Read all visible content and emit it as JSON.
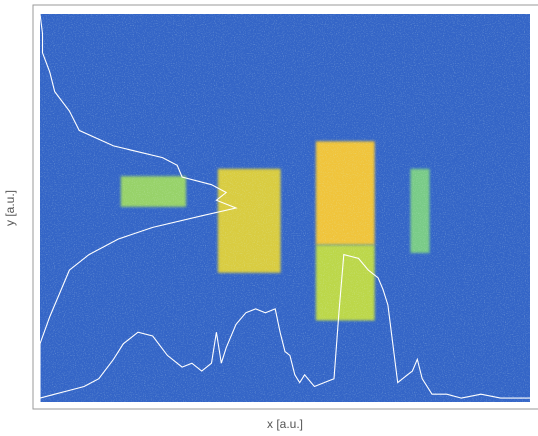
{
  "chart_data": {
    "type": "heatmap",
    "xlabel": "x [a.u.]",
    "ylabel": "y [a.u.]",
    "colormap": [
      "#2a3fb0",
      "#3a7fd6",
      "#3bbcc4",
      "#b6d94a",
      "#f0c43a",
      "#e23b2e"
    ],
    "frame_color": "#9a9a9a",
    "profile_color": "#ffffff",
    "regions": [
      {
        "name": "left-block",
        "x_range": [
          0.165,
          0.298
        ],
        "y_range": [
          0.418,
          0.497
        ],
        "intensity": 0.55
      },
      {
        "name": "center-left-block",
        "x_range": [
          0.363,
          0.491
        ],
        "y_range": [
          0.399,
          0.667
        ],
        "intensity": 0.72
      },
      {
        "name": "center-right-block",
        "x_range": [
          0.563,
          0.683
        ],
        "y_range": [
          0.328,
          0.595
        ],
        "intensity": 0.8
      },
      {
        "name": "center-right-block-lower",
        "x_range": [
          0.563,
          0.683
        ],
        "y_range": [
          0.595,
          0.79
        ],
        "intensity": 0.62
      },
      {
        "name": "right-block",
        "x_range": [
          0.756,
          0.795
        ],
        "y_range": [
          0.399,
          0.616
        ],
        "intensity": 0.5
      }
    ],
    "x_profile": {
      "x": [
        0,
        0.03,
        0.06,
        0.09,
        0.12,
        0.15,
        0.17,
        0.2,
        0.23,
        0.26,
        0.29,
        0.31,
        0.33,
        0.35,
        0.36,
        0.37,
        0.38,
        0.4,
        0.42,
        0.44,
        0.46,
        0.48,
        0.49,
        0.5,
        0.51,
        0.52,
        0.53,
        0.54,
        0.56,
        0.58,
        0.6,
        0.61,
        0.62,
        0.65,
        0.67,
        0.69,
        0.7,
        0.71,
        0.73,
        0.75,
        0.76,
        0.77,
        0.78,
        0.8,
        0.83,
        0.86,
        0.9,
        0.94,
        1.0
      ],
      "y": [
        0.01,
        0.02,
        0.03,
        0.04,
        0.06,
        0.11,
        0.15,
        0.18,
        0.17,
        0.12,
        0.09,
        0.1,
        0.08,
        0.1,
        0.18,
        0.1,
        0.14,
        0.2,
        0.23,
        0.24,
        0.23,
        0.24,
        0.18,
        0.13,
        0.12,
        0.07,
        0.05,
        0.07,
        0.04,
        0.05,
        0.06,
        0.23,
        0.38,
        0.37,
        0.34,
        0.32,
        0.29,
        0.25,
        0.05,
        0.07,
        0.08,
        0.11,
        0.06,
        0.02,
        0.02,
        0.01,
        0.02,
        0.01,
        0.01
      ]
    },
    "y_profile": {
      "y": [
        0.0,
        0.05,
        0.1,
        0.15,
        0.2,
        0.25,
        0.3,
        0.34,
        0.37,
        0.39,
        0.42,
        0.44,
        0.46,
        0.48,
        0.5,
        0.52,
        0.55,
        0.58,
        0.62,
        0.66,
        0.72,
        0.78,
        0.85,
        0.92,
        1.0
      ],
      "x": [
        0.0,
        0.005,
        0.005,
        0.02,
        0.03,
        0.06,
        0.08,
        0.15,
        0.25,
        0.28,
        0.29,
        0.35,
        0.38,
        0.36,
        0.4,
        0.33,
        0.23,
        0.16,
        0.1,
        0.06,
        0.04,
        0.02,
        0.0,
        0.0,
        0.0
      ]
    }
  }
}
